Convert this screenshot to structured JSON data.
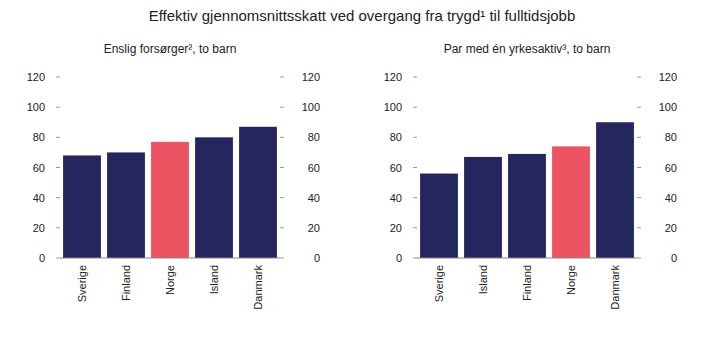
{
  "title": "Effektiv gjennomsnittsskatt ved overgang fra trygd¹ til fulltidsjobb",
  "chart_data": [
    {
      "type": "bar",
      "title": "Enslig forsørger², to barn",
      "categories": [
        "Sverige",
        "Finland",
        "Norge",
        "Island",
        "Danmark"
      ],
      "values": [
        68,
        70,
        77,
        80,
        87
      ],
      "colors": [
        "#26265e",
        "#26265e",
        "#eb5460",
        "#26265e",
        "#26265e"
      ],
      "ylim": [
        0,
        120
      ],
      "yticks": [
        0,
        20,
        40,
        60,
        80,
        100,
        120
      ],
      "y2lim": [
        0,
        120
      ],
      "y2ticks": [
        0,
        20,
        40,
        60,
        80,
        100,
        120
      ],
      "grid": false
    },
    {
      "type": "bar",
      "title": "Par med én yrkesaktiv³, to barn",
      "categories": [
        "Sverige",
        "Island",
        "Finland",
        "Norge",
        "Danmark"
      ],
      "values": [
        56,
        67,
        69,
        74,
        90
      ],
      "colors": [
        "#26265e",
        "#26265e",
        "#26265e",
        "#eb5460",
        "#26265e"
      ],
      "ylim": [
        0,
        120
      ],
      "yticks": [
        0,
        20,
        40,
        60,
        80,
        100,
        120
      ],
      "y2lim": [
        0,
        120
      ],
      "y2ticks": [
        0,
        20,
        40,
        60,
        80,
        100,
        120
      ],
      "grid": false
    }
  ]
}
